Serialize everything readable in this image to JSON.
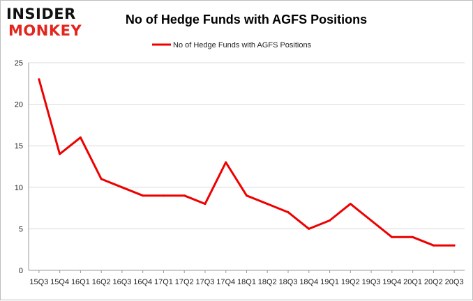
{
  "logo": {
    "line1": "INSIDER",
    "line2": "MONKEY"
  },
  "colors": {
    "series": "#ee0000",
    "grid": "#d9d9d9",
    "axis": "#999999",
    "logo_dark": "#111111",
    "logo_accent": "#e2261e"
  },
  "chart_data": {
    "type": "line",
    "title": "No of Hedge Funds with AGFS Positions",
    "xlabel": "",
    "ylabel": "",
    "ylim": [
      0,
      25
    ],
    "yticks": [
      0,
      5,
      10,
      15,
      20,
      25
    ],
    "grid": true,
    "legend": "top-center",
    "categories": [
      "15Q3",
      "15Q4",
      "16Q1",
      "16Q2",
      "16Q3",
      "16Q4",
      "17Q1",
      "17Q2",
      "17Q3",
      "17Q4",
      "18Q1",
      "18Q2",
      "18Q3",
      "18Q4",
      "19Q1",
      "19Q2",
      "19Q3",
      "19Q4",
      "20Q1",
      "20Q2",
      "20Q3"
    ],
    "series": [
      {
        "name": "No of Hedge Funds with AGFS Positions",
        "values": [
          23,
          14,
          16,
          11,
          10,
          9,
          9,
          9,
          8,
          13,
          9,
          8,
          7,
          5,
          6,
          8,
          6,
          4,
          4,
          3,
          3
        ]
      }
    ]
  }
}
